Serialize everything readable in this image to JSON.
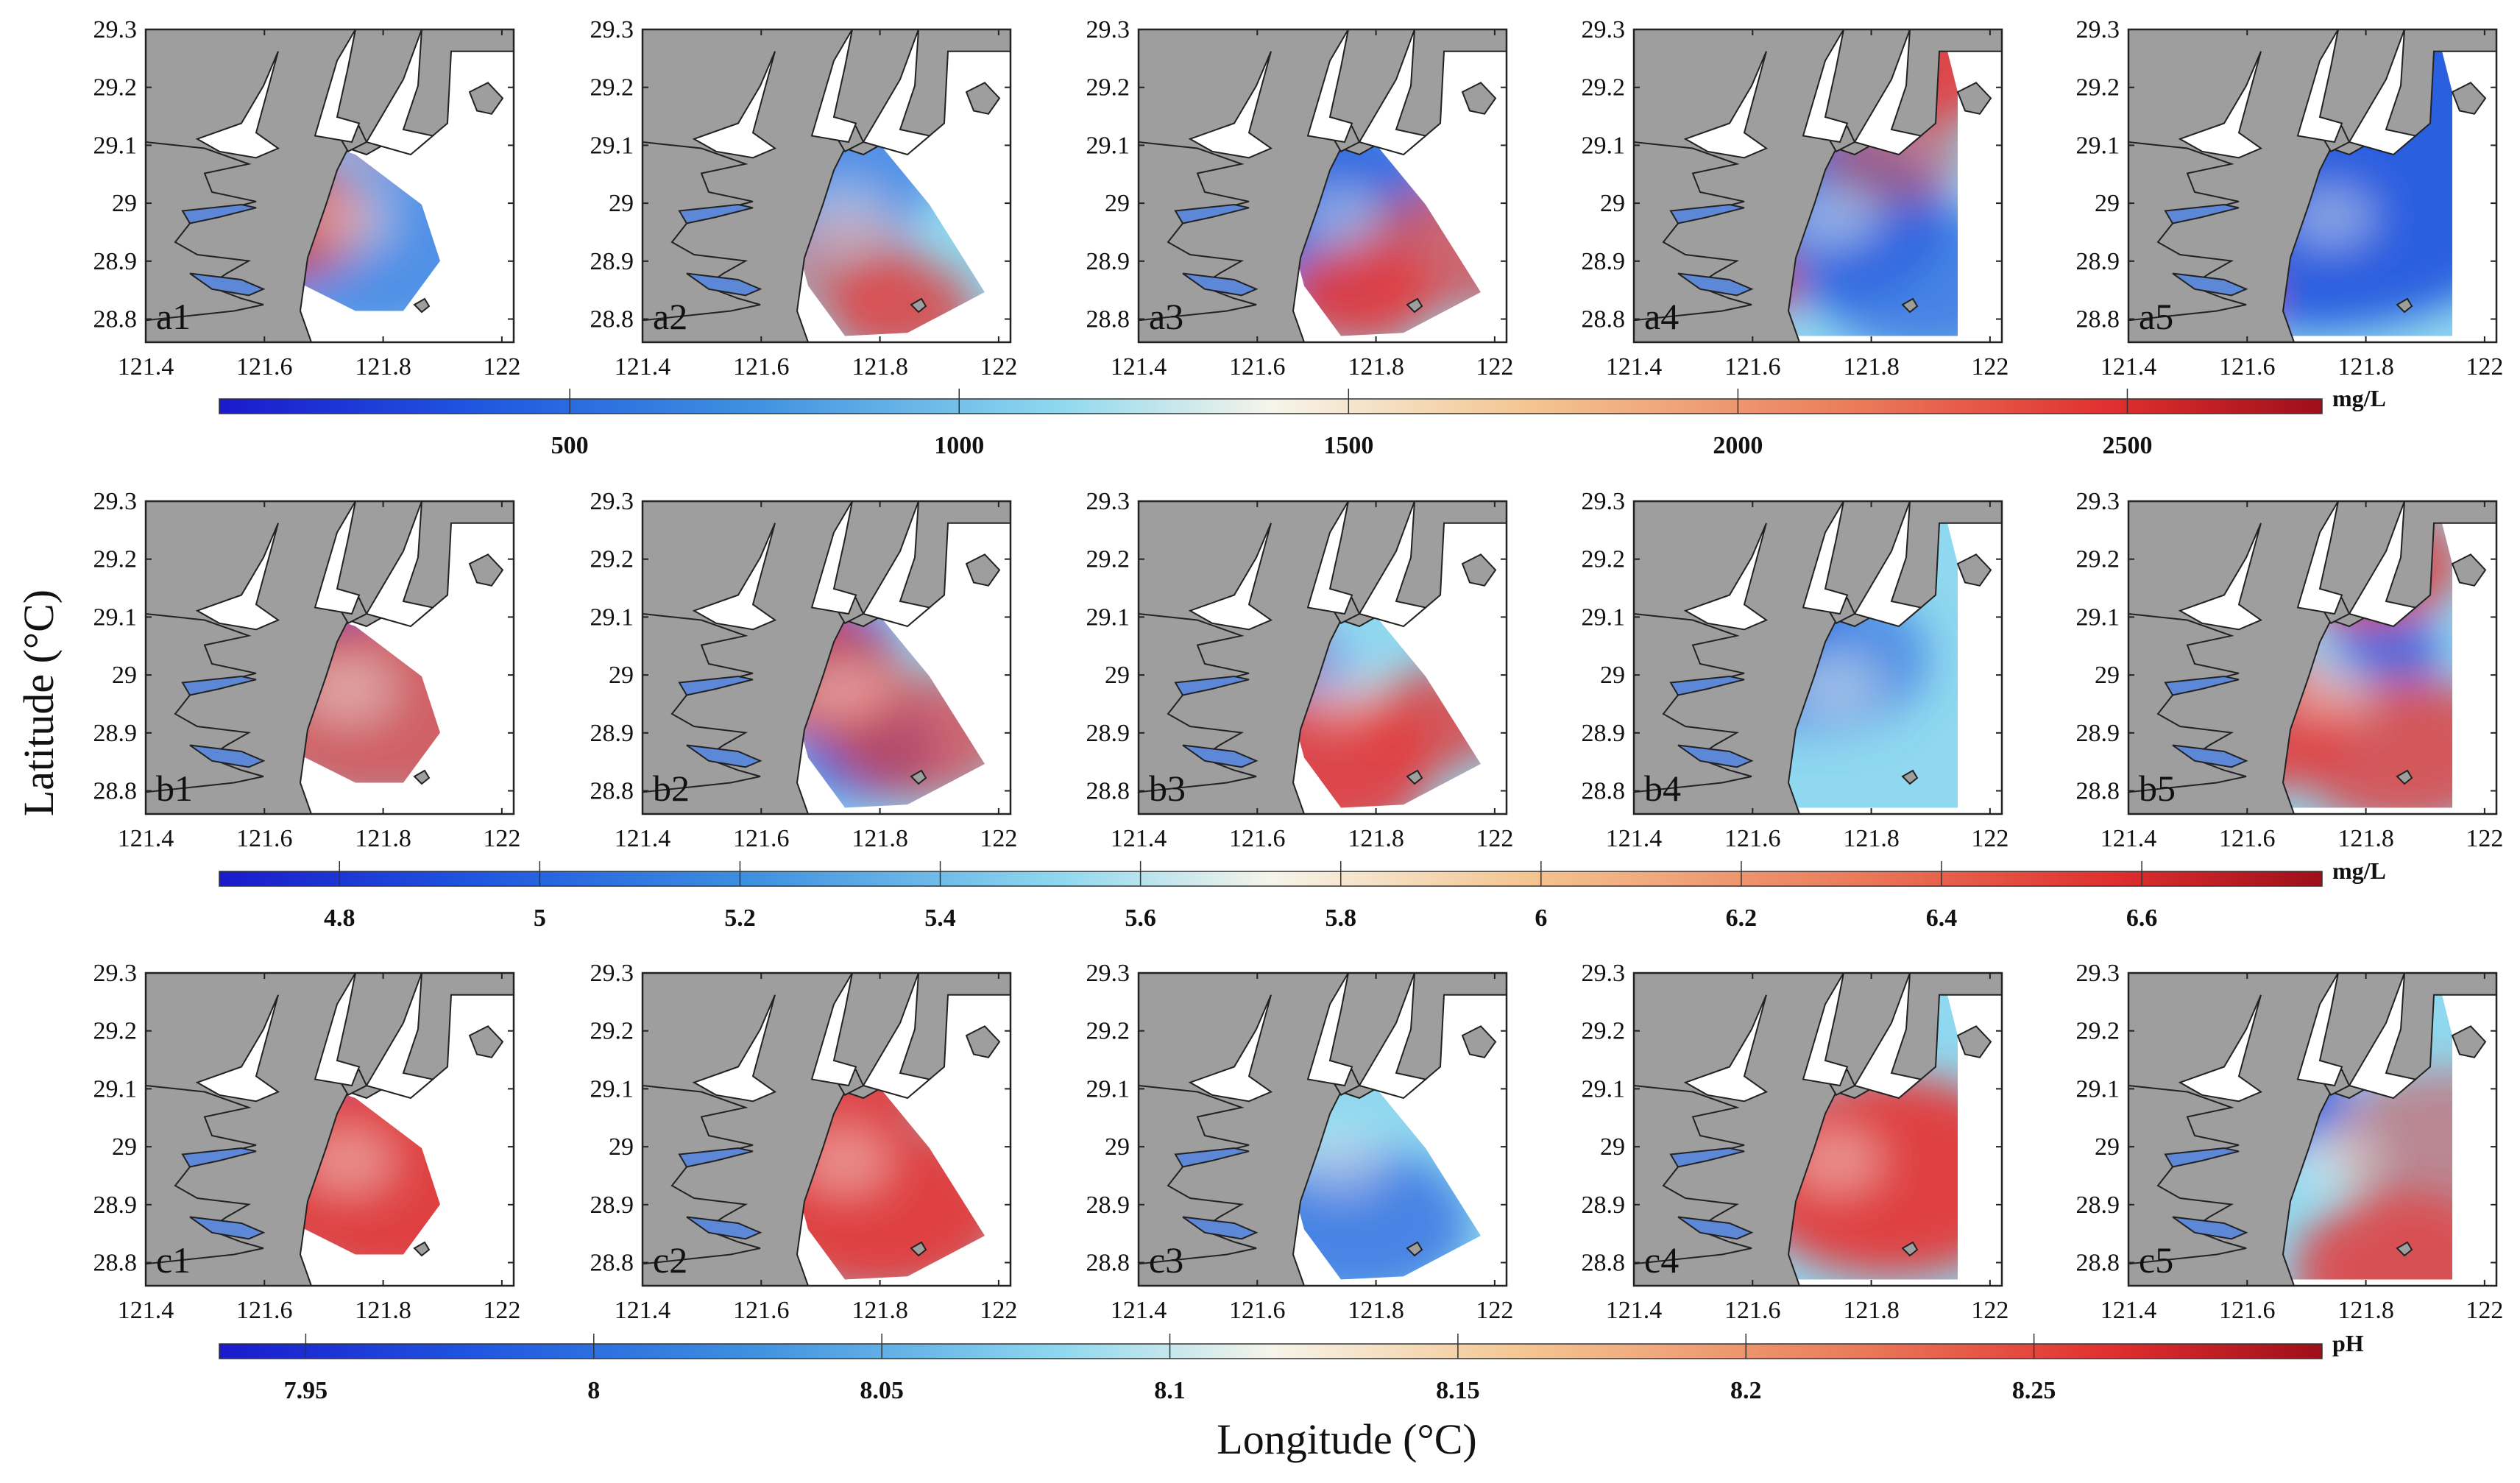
{
  "chart_data": {
    "type": "heatmap",
    "title": "",
    "xlabel": "Longitude (°C)",
    "ylabel": "Latitude (°C)",
    "x_ticks": [
      "121.4",
      "121.6",
      "121.8",
      "122"
    ],
    "y_ticks": [
      "29.3",
      "29.2",
      "29.1",
      "29",
      "28.9",
      "28.8"
    ],
    "xlim": [
      121.4,
      122.02
    ],
    "ylim": [
      28.76,
      29.3
    ],
    "rows": [
      {
        "variable": "row-a",
        "unit": "mg/L",
        "colorbar": {
          "min": 50,
          "max": 2750,
          "ticks": [
            "500",
            "1000",
            "1500",
            "2000",
            "2500"
          ],
          "tick_values": [
            500,
            1000,
            1500,
            2000,
            2500
          ]
        },
        "panels": [
          {
            "label": "a1",
            "shape": "inner",
            "hot": [
              [
                0.72,
                0.25,
                0.18,
                0.95
              ],
              [
                0.35,
                0.6,
                0.25,
                0.8
              ]
            ],
            "cold": [
              [
                0.25,
                0.2,
                0.3,
                0.9
              ],
              [
                0.6,
                0.7,
                0.35,
                0.6
              ]
            ]
          },
          {
            "label": "a2",
            "shape": "diag",
            "hot": [
              [
                0.7,
                0.9,
                0.2,
                0.8
              ],
              [
                0.55,
                0.75,
                0.2,
                0.5
              ]
            ],
            "cold": [
              [
                0.1,
                0.2,
                0.35,
                0.9
              ],
              [
                0.5,
                0.45,
                0.3,
                0.6
              ]
            ]
          },
          {
            "label": "a3",
            "shape": "diag",
            "hot": [
              [
                0.2,
                0.15,
                0.3,
                0.95
              ],
              [
                0.6,
                0.85,
                0.2,
                0.9
              ],
              [
                0.85,
                0.7,
                0.25,
                0.7
              ]
            ],
            "cold": [
              [
                0.5,
                0.5,
                0.3,
                0.9
              ],
              [
                0.45,
                0.75,
                0.25,
                0.6
              ]
            ]
          },
          {
            "label": "a4",
            "shape": "full",
            "hot": [
              [
                0.8,
                0.1,
                0.25,
                0.9
              ],
              [
                0.3,
                0.8,
                0.15,
                0.8
              ],
              [
                0.7,
                0.4,
                0.2,
                0.5
              ]
            ],
            "cold": [
              [
                0.2,
                0.2,
                0.35,
                0.9
              ],
              [
                0.5,
                0.6,
                0.35,
                0.8
              ],
              [
                0.8,
                0.8,
                0.3,
                0.7
              ]
            ]
          },
          {
            "label": "a5",
            "shape": "full",
            "hot": [
              [
                0.28,
                0.85,
                0.1,
                1.0
              ]
            ],
            "cold": [
              [
                0.5,
                0.4,
                0.7,
                1.0
              ]
            ]
          }
        ]
      },
      {
        "variable": "row-b",
        "unit": "mg/L",
        "colorbar": {
          "min": 4.68,
          "max": 6.78,
          "ticks": [
            "4.8",
            "5",
            "5.2",
            "5.4",
            "5.6",
            "5.8",
            "6",
            "6.2",
            "6.4",
            "6.6"
          ],
          "tick_values": [
            4.8,
            5.0,
            5.2,
            5.4,
            5.6,
            5.8,
            6.0,
            6.2,
            6.4,
            6.6
          ]
        },
        "panels": [
          {
            "label": "b1",
            "shape": "inner",
            "hot": [
              [
                0.2,
                0.3,
                0.2,
                0.95
              ],
              [
                0.65,
                0.65,
                0.4,
                0.75
              ]
            ],
            "cold": [
              [
                0.45,
                0.25,
                0.25,
                0.9
              ]
            ]
          },
          {
            "label": "b2",
            "shape": "diag",
            "hot": [
              [
                0.25,
                0.2,
                0.3,
                0.9
              ],
              [
                0.45,
                0.55,
                0.25,
                0.8
              ],
              [
                0.75,
                0.75,
                0.25,
                0.7
              ]
            ],
            "cold": [
              [
                0.5,
                0.45,
                0.18,
                0.9
              ],
              [
                0.6,
                0.8,
                0.2,
                0.8
              ]
            ]
          },
          {
            "label": "b3",
            "shape": "diag",
            "hot": [
              [
                0.35,
                0.45,
                0.12,
                0.9
              ],
              [
                0.5,
                0.85,
                0.3,
                0.9
              ],
              [
                0.8,
                0.7,
                0.2,
                0.8
              ]
            ],
            "cold": [
              [
                0.45,
                0.55,
                0.15,
                0.7
              ]
            ]
          },
          {
            "label": "b4",
            "shape": "full",
            "hot": [
              [
                0.15,
                0.45,
                0.1,
                0.95
              ]
            ],
            "cold": [
              [
                0.25,
                0.3,
                0.3,
                0.8
              ],
              [
                0.5,
                0.5,
                0.3,
                0.6
              ]
            ]
          },
          {
            "label": "b5",
            "shape": "full",
            "hot": [
              [
                0.65,
                0.2,
                0.25,
                0.85
              ],
              [
                0.3,
                0.7,
                0.3,
                0.85
              ],
              [
                0.75,
                0.8,
                0.3,
                0.8
              ]
            ],
            "cold": [
              [
                0.7,
                0.48,
                0.15,
                0.9
              ]
            ]
          }
        ]
      },
      {
        "variable": "row-c",
        "unit": "pH",
        "colorbar": {
          "min": 7.935,
          "max": 8.3,
          "ticks": [
            "7.95",
            "8",
            "8.05",
            "8.1",
            "8.15",
            "8.2",
            "8.25"
          ],
          "tick_values": [
            7.95,
            8.0,
            8.05,
            8.1,
            8.15,
            8.2,
            8.25
          ]
        },
        "panels": [
          {
            "label": "c1",
            "shape": "inner",
            "hot": [
              [
                0.7,
                0.65,
                0.45,
                0.95
              ]
            ],
            "cold": [
              [
                0.38,
                0.2,
                0.22,
                0.9
              ]
            ]
          },
          {
            "label": "c2",
            "shape": "diag",
            "hot": [
              [
                0.45,
                0.3,
                0.35,
                0.9
              ],
              [
                0.65,
                0.75,
                0.35,
                0.95
              ]
            ],
            "cold": [
              [
                0.25,
                0.8,
                0.15,
                0.6
              ]
            ]
          },
          {
            "label": "c3",
            "shape": "diag",
            "hot": [
              [
                0.25,
                0.15,
                0.3,
                0.9
              ],
              [
                0.2,
                0.4,
                0.12,
                0.95
              ]
            ],
            "cold": [
              [
                0.6,
                0.8,
                0.3,
                0.7
              ]
            ]
          },
          {
            "label": "c4",
            "shape": "full",
            "hot": [
              [
                0.7,
                0.65,
                0.4,
                0.95
              ]
            ],
            "cold": [
              [
                0.3,
                0.35,
                0.15,
                0.8
              ],
              [
                0.2,
                0.25,
                0.2,
                0.5
              ]
            ]
          },
          {
            "label": "c5",
            "shape": "full",
            "hot": [
              [
                0.75,
                0.95,
                0.3,
                0.85
              ],
              [
                0.85,
                0.55,
                0.3,
                0.5
              ]
            ],
            "cold": [
              [
                0.35,
                0.4,
                0.25,
                0.85
              ]
            ]
          }
        ]
      }
    ]
  }
}
